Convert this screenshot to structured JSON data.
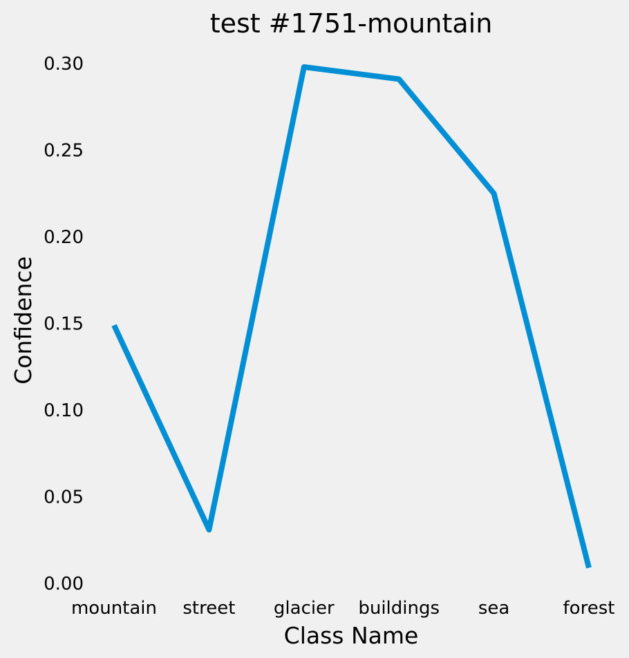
{
  "chart_data": {
    "type": "line",
    "title": "test #1751-mountain",
    "xlabel": "Class Name",
    "ylabel": "Confidence",
    "categories": [
      "mountain",
      "street",
      "glacier",
      "buildings",
      "sea",
      "forest"
    ],
    "series": [
      {
        "values": [
          0.149,
          0.031,
          0.298,
          0.291,
          0.225,
          0.009
        ]
      }
    ],
    "yticks": [
      "0.00",
      "0.05",
      "0.10",
      "0.15",
      "0.20",
      "0.25",
      "0.30"
    ],
    "ylim": [
      0.0,
      0.3
    ],
    "grid": false,
    "line_color": "#008fd5",
    "background": "#f0f0f0"
  }
}
